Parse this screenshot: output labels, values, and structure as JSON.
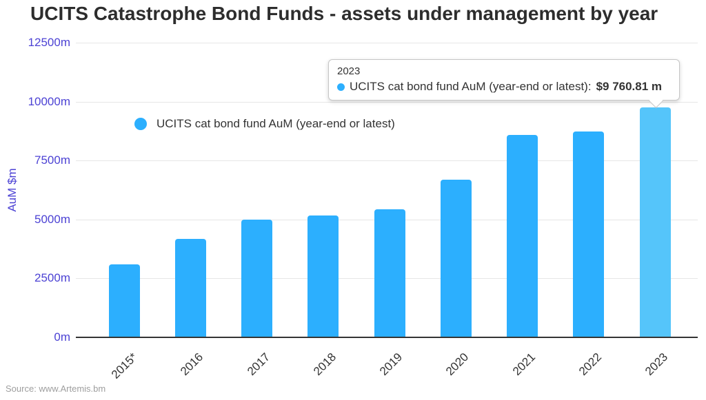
{
  "title": "UCITS Catastrophe Bond Funds - assets under management by year",
  "source": "Source: www.Artemis.bm",
  "legend": {
    "label": "UCITS cat bond fund AuM (year-end or latest)"
  },
  "tooltip": {
    "title": "2023",
    "label": "UCITS cat bond fund AuM (year-end or latest):",
    "value": "$9 760.81 m"
  },
  "chart_data": {
    "type": "bar",
    "title": "UCITS Catastrophe Bond Funds - assets under management by year",
    "xlabel": "",
    "ylabel": "AuM $m",
    "categories": [
      "2015*",
      "2016",
      "2017",
      "2018",
      "2019",
      "2020",
      "2021",
      "2022",
      "2023"
    ],
    "series": [
      {
        "name": "UCITS cat bond fund AuM (year-end or latest)",
        "values": [
          3090,
          4180,
          5000,
          5170,
          5440,
          6690,
          8600,
          8720,
          9760.81
        ]
      }
    ],
    "ylim": [
      0,
      12500
    ],
    "ytick_labels": [
      "0m",
      "2500m",
      "5000m",
      "7500m",
      "10000m",
      "12500m"
    ],
    "grid": true,
    "legend_position": "top-left-inside",
    "highlight_index": 8,
    "colors": {
      "bar": "#2CAFFE",
      "bar_highlight": "#55C5FA",
      "axis_label": "#4C42D4",
      "gridline": "#E6E6E6",
      "axis_line": "#333333",
      "text": "#333333",
      "source": "#9E9E9E"
    }
  }
}
